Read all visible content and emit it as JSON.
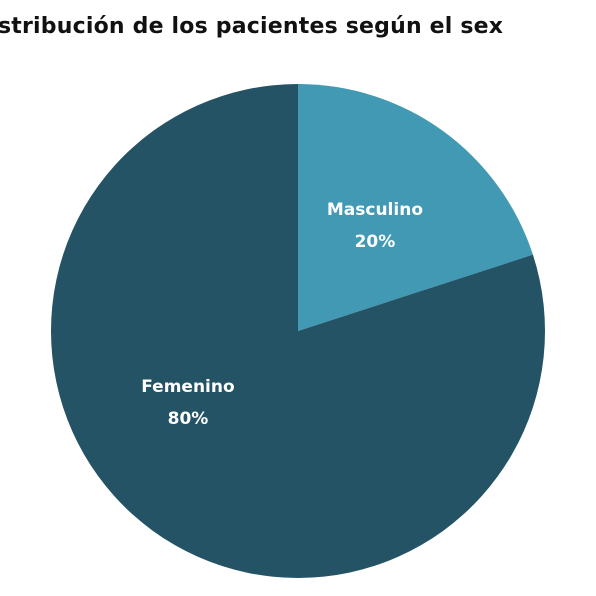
{
  "chart_data": {
    "type": "pie",
    "title": "stribución  de los pacientes según el sex",
    "slices": [
      {
        "label": "Masculino",
        "value": 20,
        "value_label": "20%",
        "color": "#4199b3"
      },
      {
        "label": "Femenino",
        "value": 80,
        "value_label": "80%",
        "color": "#235365"
      }
    ],
    "start_angle_deg": 0,
    "direction": "clockwise",
    "legend": "none"
  }
}
